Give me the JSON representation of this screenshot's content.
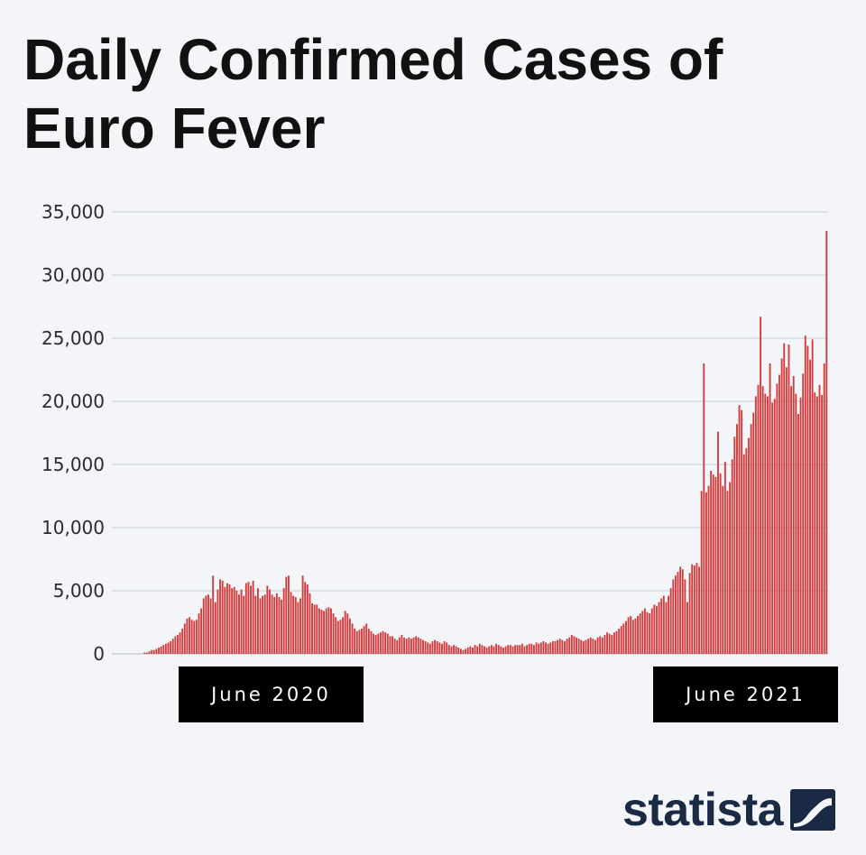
{
  "title": "Daily Confirmed Cases of Euro Fever",
  "brand": {
    "name": "statista",
    "logo_icon": "statista-logo-icon",
    "color": "#1b2a44"
  },
  "colors": {
    "bar": "#d23c3c",
    "grid": "#c9cdd3",
    "background": "#f3f5f9"
  },
  "chart_data": {
    "type": "bar",
    "title": "Daily Confirmed Cases of Euro Fever",
    "xlabel": "",
    "ylabel": "",
    "ylim": [
      0,
      35000
    ],
    "yticks": [
      0,
      5000,
      10000,
      15000,
      20000,
      25000,
      30000,
      35000
    ],
    "ytick_labels": [
      "0",
      "5,000",
      "10,000",
      "15,000",
      "20,000",
      "25,000",
      "30,000",
      "35,000"
    ],
    "x_labels": [
      "June 2020",
      "June 2021"
    ],
    "grid": true,
    "values": [
      0,
      0,
      0,
      0,
      0,
      0,
      0,
      0,
      0,
      0,
      0,
      0,
      100,
      100,
      200,
      300,
      300,
      400,
      500,
      600,
      700,
      800,
      900,
      1000,
      1200,
      1400,
      1500,
      1700,
      2000,
      2400,
      2800,
      2900,
      2700,
      2600,
      2700,
      3200,
      3600,
      4400,
      4600,
      4700,
      4400,
      6200,
      4100,
      5100,
      5900,
      5800,
      5300,
      5600,
      5500,
      5200,
      5300,
      5000,
      4700,
      5100,
      4600,
      5600,
      5700,
      5400,
      5800,
      4600,
      5200,
      4400,
      4600,
      4700,
      5400,
      5100,
      4700,
      4500,
      4800,
      4500,
      4300,
      5200,
      6100,
      6200,
      4900,
      4600,
      4500,
      4100,
      4400,
      6200,
      5700,
      5500,
      4800,
      4000,
      3900,
      3900,
      3600,
      3500,
      3400,
      3600,
      3700,
      3600,
      3200,
      2900,
      2600,
      2700,
      2900,
      3400,
      3200,
      2800,
      2400,
      2000,
      1800,
      1900,
      2000,
      2200,
      2400,
      2000,
      1800,
      1600,
      1500,
      1600,
      1700,
      1800,
      1700,
      1600,
      1400,
      1400,
      1200,
      1100,
      1300,
      1500,
      1300,
      1200,
      1300,
      1200,
      1300,
      1400,
      1300,
      1200,
      1100,
      1000,
      900,
      800,
      1000,
      1100,
      1000,
      900,
      800,
      1000,
      900,
      700,
      600,
      700,
      600,
      500,
      400,
      300,
      400,
      500,
      600,
      500,
      700,
      600,
      800,
      700,
      600,
      500,
      600,
      700,
      600,
      800,
      700,
      600,
      500,
      600,
      700,
      700,
      600,
      700,
      700,
      700,
      800,
      600,
      700,
      800,
      800,
      700,
      900,
      800,
      900,
      1000,
      900,
      800,
      900,
      1000,
      1000,
      1100,
      1200,
      1100,
      1000,
      1200,
      1300,
      1500,
      1400,
      1300,
      1200,
      1100,
      1000,
      1100,
      1200,
      1300,
      1200,
      1100,
      1300,
      1400,
      1300,
      1500,
      1700,
      1600,
      1500,
      1700,
      1800,
      2000,
      2200,
      2400,
      2600,
      2900,
      3000,
      2700,
      2800,
      3000,
      3200,
      3400,
      3600,
      3300,
      3200,
      3600,
      3900,
      3800,
      4100,
      4400,
      4600,
      4100,
      4600,
      5200,
      5900,
      6200,
      6500,
      6900,
      6700,
      5900,
      4100,
      6400,
      7100,
      7000,
      7200,
      6900,
      12900,
      23000,
      12800,
      13300,
      14500,
      14200,
      14000,
      17600,
      14300,
      13300,
      15200,
      12900,
      13600,
      15400,
      17200,
      18200,
      19700,
      19300,
      15800,
      16300,
      17100,
      18200,
      19100,
      20400,
      21300,
      26700,
      21200,
      20600,
      20400,
      23000,
      19900,
      20200,
      21400,
      22100,
      23400,
      24600,
      22700,
      24500,
      21200,
      22000,
      20600,
      19000,
      20300,
      22200,
      25200,
      24400,
      23300,
      24900,
      20700,
      20400,
      21300,
      20500,
      23000,
      33500
    ]
  }
}
